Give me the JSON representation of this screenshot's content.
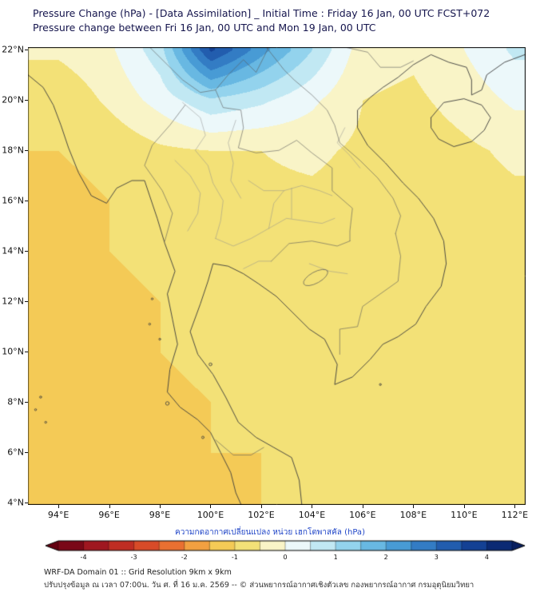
{
  "header": {
    "title_line1": "Pressure Change (hPa) - [Data Assimilation] _ Initial Time : Friday 16 Jan, 00 UTC FCST+072",
    "title_line2": "Pressure change between Fri 16 Jan, 00 UTC and Mon 19 Jan, 00 UTC"
  },
  "chart_data": {
    "type": "heatmap",
    "title": "Pressure Change (hPa) - [Data Assimilation]",
    "units": "hPa",
    "contour_interval": 0.5,
    "x_axis": {
      "labels": [
        "94°E",
        "96°E",
        "98°E",
        "100°E",
        "102°E",
        "104°E",
        "106°E",
        "108°E",
        "110°E",
        "112°E"
      ],
      "lons": [
        94,
        96,
        98,
        100,
        102,
        104,
        106,
        108,
        110,
        112
      ]
    },
    "y_axis": {
      "labels": [
        "22°N",
        "20°N",
        "18°N",
        "16°N",
        "14°N",
        "12°N",
        "10°N",
        "8°N",
        "6°N",
        "4°N"
      ],
      "lats": [
        22,
        20,
        18,
        16,
        14,
        12,
        10,
        8,
        6,
        4
      ]
    },
    "lon_extent": [
      92.8,
      112.4
    ],
    "lat_extent": [
      3.95,
      22.1
    ],
    "grid_lons": [
      94,
      96,
      98,
      100,
      102,
      104,
      106,
      108,
      110,
      112
    ],
    "grid_lats": [
      22,
      20,
      18,
      16,
      14,
      12,
      10,
      8,
      6,
      4
    ],
    "values_hpa": [
      [
        -0.4,
        -0.1,
        0.8,
        3.6,
        2.2,
        1.0,
        -0.3,
        -0.4,
        0.0,
        0.6
      ],
      [
        -0.9,
        -0.4,
        0.2,
        0.9,
        0.6,
        0.1,
        -0.5,
        -0.6,
        -0.3,
        0.1
      ],
      [
        -1.0,
        -0.9,
        -0.6,
        -0.5,
        -0.5,
        -0.4,
        -0.6,
        -0.8,
        -0.6,
        -0.4
      ],
      [
        -1.1,
        -1.0,
        -0.8,
        -0.7,
        -0.6,
        -0.6,
        -0.7,
        -0.8,
        -0.7,
        -0.6
      ],
      [
        -1.1,
        -1.0,
        -0.9,
        -0.8,
        -0.7,
        -0.7,
        -0.7,
        -0.8,
        -0.8,
        -0.7
      ],
      [
        -1.2,
        -1.1,
        -1.0,
        -0.9,
        -0.8,
        -0.8,
        -0.8,
        -0.9,
        -0.9,
        -0.8
      ],
      [
        -1.2,
        -1.1,
        -1.0,
        -0.9,
        -0.9,
        -0.8,
        -0.9,
        -0.9,
        -0.9,
        -0.9
      ],
      [
        -1.3,
        -1.2,
        -1.1,
        -1.0,
        -0.9,
        -0.9,
        -0.9,
        -1.0,
        -1.0,
        -0.9
      ],
      [
        -1.3,
        -1.2,
        -1.1,
        -1.0,
        -1.0,
        -0.9,
        -1.0,
        -1.0,
        -1.0,
        -1.0
      ],
      [
        -1.3,
        -1.3,
        -1.2,
        -1.1,
        -1.0,
        -1.0,
        -1.0,
        -1.0,
        -1.0,
        -1.0
      ]
    ],
    "colormap_stops": [
      [
        -4.5,
        "#650010"
      ],
      [
        -4.0,
        "#8e0f1e"
      ],
      [
        -3.5,
        "#b01f22"
      ],
      [
        -3.0,
        "#cd3a24"
      ],
      [
        -2.5,
        "#e25b2b"
      ],
      [
        -2.0,
        "#ef8436"
      ],
      [
        -1.5,
        "#f5bb4c"
      ],
      [
        -1.0,
        "#f2d95f"
      ],
      [
        -0.5,
        "#f3e88e"
      ],
      [
        0.0,
        "#ffffff"
      ],
      [
        0.5,
        "#d9f0f4"
      ],
      [
        1.0,
        "#a9dff2"
      ],
      [
        1.5,
        "#7cc6e8"
      ],
      [
        2.0,
        "#54a9dc"
      ],
      [
        2.5,
        "#3b8ccd"
      ],
      [
        3.0,
        "#2a6cbb"
      ],
      [
        3.5,
        "#1a4da0"
      ],
      [
        4.0,
        "#0e3487"
      ],
      [
        4.5,
        "#081f60"
      ]
    ],
    "colorbar": {
      "label": "ความกดอากาศเปลี่ยนแปลง หน่วย เฮกโตพาสคัล (hPa)",
      "tick_labels": [
        "-4",
        "-3",
        "-2",
        "-1",
        "0",
        "1",
        "2",
        "3",
        "4"
      ],
      "tick_values": [
        -4,
        -3,
        -2,
        -1,
        0,
        1,
        2,
        3,
        4
      ],
      "range": [
        -4.5,
        4.5
      ]
    }
  },
  "footer": {
    "line1": "WRF-DA Domain 01 :: Grid Resolution 9km x 9km",
    "line2": "ปรับปรุงข้อมูล ณ เวลา 07:00น. วัน ศ. ที่ 16 ม.ค. 2569 -- © ส่วนพยากรณ์อากาศเชิงตัวเลข กองพยากรณ์อากาศ กรมอุตุนิยมวิทยา"
  }
}
